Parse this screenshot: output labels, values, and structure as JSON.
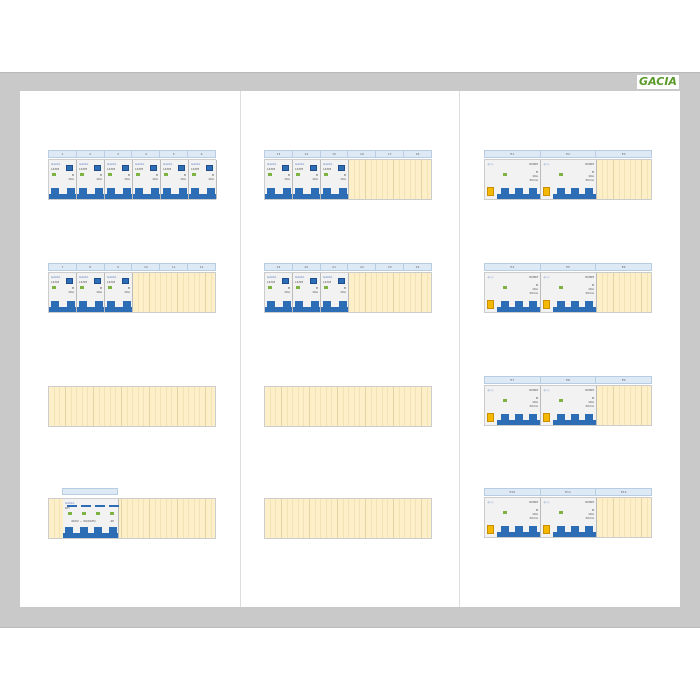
{
  "logo": "GACIA",
  "mcb": {
    "brand": "GACIA",
    "model": "L63M",
    "curve": "B",
    "current": "16A",
    "sens": ""
  },
  "rcbo": {
    "symbol": "-(/-)-",
    "model": "RCBM",
    "curve": "B",
    "current": "16A",
    "sens": "30mA"
  },
  "isolator": {
    "brand": "GACIA",
    "model": "DH",
    "voltage": "400V ~ 50/60Hz",
    "poles": "4P",
    "label": ""
  },
  "columns": [
    {
      "boards": [
        {
          "headers": [
            "1",
            "2",
            "3",
            "4",
            "5",
            "6"
          ],
          "mcb_count": 6
        },
        {
          "headers": [
            "7",
            "8",
            "9",
            "10",
            "11",
            "12"
          ],
          "mcb_count": 3
        },
        {
          "headers": null,
          "mcb_count": 0
        },
        {
          "headers": null,
          "mcb_count": 0,
          "isolator": true
        }
      ]
    },
    {
      "boards": [
        {
          "headers": [
            "13",
            "14",
            "15",
            "16",
            "17",
            "18"
          ],
          "mcb_count": 3
        },
        {
          "headers": [
            "19",
            "20",
            "21",
            "22",
            "23",
            "24"
          ],
          "mcb_count": 3
        },
        {
          "headers": null,
          "mcb_count": 0
        },
        {
          "headers": null,
          "mcb_count": 0
        }
      ]
    },
    {
      "boards": [
        {
          "headers": [
            "E1",
            "E2",
            "E3"
          ],
          "rcbo_count": 2
        },
        {
          "headers": [
            "E4",
            "E5",
            "E6"
          ],
          "rcbo_count": 2
        },
        {
          "headers": [
            "E7",
            "E8",
            "E9"
          ],
          "rcbo_count": 2
        },
        {
          "headers": [
            "E10",
            "E11",
            "E12"
          ],
          "rcbo_count": 2
        }
      ]
    }
  ]
}
